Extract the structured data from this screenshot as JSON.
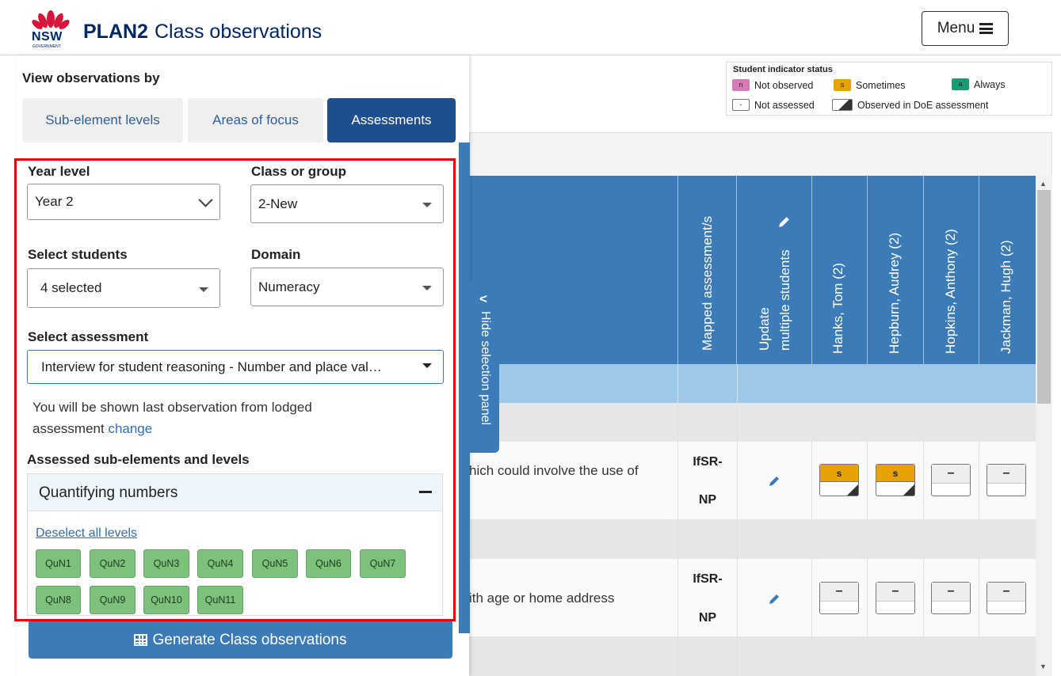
{
  "header": {
    "logo_text": "NSW",
    "logo_subtext": "GOVERNMENT",
    "app_name": "PLAN2",
    "page_title": "Class observations",
    "menu_label": "Menu"
  },
  "legend": {
    "title": "Student indicator status",
    "items": [
      {
        "chip": "n",
        "label": "Not observed",
        "color": "#d879b8"
      },
      {
        "chip": "s",
        "label": "Sometimes",
        "color": "#e5a200"
      },
      {
        "chip": "a",
        "label": "Always",
        "color": "#1b9c75"
      },
      {
        "chip": "-",
        "label": "Not assessed"
      },
      {
        "chip": "",
        "label": "Observed in DoE assessment"
      }
    ]
  },
  "table": {
    "columns": [
      "Mapped assessment/s",
      "Update",
      "multiple students",
      "Hanks, Tom (2)",
      "Hepburn, Audrey (2)",
      "Hopkins, Anthony (2)",
      "Jackman, Hugh (2)"
    ],
    "rows": [
      {
        "description": "hich could involve the use of",
        "code_line1": "IfSR-",
        "code_line2": "NP",
        "cells": [
          "s",
          "s",
          "–",
          "–"
        ]
      },
      {
        "description": "ith age or home address",
        "code_line1": "IfSR-",
        "code_line2": "NP",
        "cells": [
          "–",
          "–",
          "–",
          "–"
        ]
      }
    ]
  },
  "panel": {
    "heading": "View observations by",
    "tabs": [
      "Sub-element levels",
      "Areas of focus",
      "Assessments"
    ],
    "active_tab": "Assessments",
    "hide_label": "Hide selection panel",
    "year_level_label": "Year level",
    "year_level_value": "Year 2",
    "class_label": "Class or group",
    "class_value": "2-New",
    "students_label": "Select students",
    "students_value": "4 selected",
    "domain_label": "Domain",
    "domain_value": "Numeracy",
    "assessment_label": "Select assessment",
    "assessment_value": "Interview for student reasoning - Number and place val…",
    "info_text": "You will be shown last observation from lodged assessment",
    "info_link": "change",
    "subelements_label": "Assessed sub-elements and levels",
    "accordion_title": "Quantifying numbers",
    "deselect_label": "Deselect all levels",
    "levels": [
      "QuN1",
      "QuN2",
      "QuN3",
      "QuN4",
      "QuN5",
      "QuN6",
      "QuN7",
      "QuN8",
      "QuN9",
      "QuN10",
      "QuN11"
    ],
    "generate_label": "Generate Class observations"
  },
  "colors": {
    "brand_navy": "#002664",
    "primary_blue": "#3b7bb8",
    "active_tab": "#1f4e8e",
    "level_green": "#7dc17d",
    "highlight_red": "#e0000a"
  }
}
